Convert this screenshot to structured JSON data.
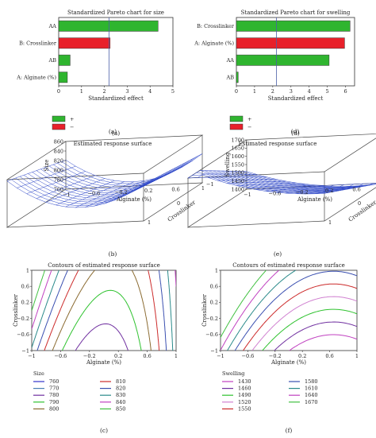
{
  "chart_data": [
    {
      "panel": "a",
      "type": "bar",
      "orientation": "horizontal",
      "title": "Standardized Pareto chart for size",
      "xlabel": "Standardized effect",
      "categories": [
        "AA",
        "B: Crosslinker",
        "AB",
        "A: Alginate (%)"
      ],
      "values": [
        4.35,
        2.25,
        0.5,
        0.38
      ],
      "signs": [
        "+",
        "-",
        "+",
        "+"
      ],
      "xticks": [
        "0",
        "1",
        "2",
        "3",
        "4",
        "5"
      ],
      "xlim": [
        0,
        5
      ],
      "reference_line": 2.2,
      "legend": [
        "+",
        "−"
      ],
      "caption": "(a)"
    },
    {
      "panel": "d",
      "type": "bar",
      "orientation": "horizontal",
      "title": "Standardized Pareto chart for swelling",
      "xlabel": "Standardized effect",
      "categories": [
        "B: Crosslinker",
        "A: Alginate (%)",
        "AA",
        "AB"
      ],
      "values": [
        6.25,
        5.95,
        5.1,
        0.1
      ],
      "signs": [
        "+",
        "-",
        "+",
        "+"
      ],
      "xticks": [
        "0",
        "1",
        "2",
        "3",
        "4",
        "5",
        "6"
      ],
      "xlim": [
        0,
        6.5
      ],
      "reference_line": 2.2,
      "legend": [
        "+",
        "−"
      ],
      "caption": "(d)"
    },
    {
      "panel": "b",
      "type": "surface",
      "title": "Estimated response surface",
      "zlabel": "Size",
      "xlabel": "Alginate (%)",
      "ylabel": "Crosslinker",
      "zticks": [
        "860",
        "840",
        "820",
        "800",
        "780",
        "760"
      ],
      "xticks": [
        "−1",
        "−0.6",
        "−0.2",
        "0.2",
        "0.6",
        "1"
      ],
      "yticks": [
        "1",
        "0",
        "−1"
      ],
      "caption": "(b)"
    },
    {
      "panel": "e",
      "type": "surface",
      "title": "Estimated response surface",
      "zlabel": "Swelling",
      "xlabel": "Alginate (%)",
      "ylabel": "Crosslinker",
      "zticks": [
        "1700",
        "1650",
        "1600",
        "1550",
        "1500",
        "1450",
        "1400"
      ],
      "xticks": [
        "−1",
        "−0.6",
        "−0.2",
        "0.2",
        "0.6",
        "1"
      ],
      "yticks": [
        "1",
        "0",
        "−1"
      ],
      "caption": "(e)"
    },
    {
      "panel": "c",
      "type": "contour",
      "title": "Contours of estimated response surface",
      "xlabel": "Alginate (%)",
      "ylabel": "Crosslinker",
      "xticks": [
        "−1",
        "−0.6",
        "−0.2",
        "0.2",
        "0.6",
        "1"
      ],
      "yticks": [
        "1",
        "0.6",
        "0.2",
        "−0.2",
        "−0.6",
        "−1"
      ],
      "xlim": [
        -1,
        1
      ],
      "ylim": [
        -1,
        1
      ],
      "legend_title": "Size",
      "levels": [
        {
          "label": "760",
          "color": "#3333cc"
        },
        {
          "label": "770",
          "color": "#4a7fb5"
        },
        {
          "label": "780",
          "color": "#7030a0"
        },
        {
          "label": "790",
          "color": "#2ec22e"
        },
        {
          "label": "800",
          "color": "#8a6a30"
        },
        {
          "label": "810",
          "color": "#cc2a2a"
        },
        {
          "label": "820",
          "color": "#3a4fb0"
        },
        {
          "label": "830",
          "color": "#2a8a8a"
        },
        {
          "label": "840",
          "color": "#c040c0"
        },
        {
          "label": "850",
          "color": "#40c040"
        }
      ],
      "caption": "(c)"
    },
    {
      "panel": "f",
      "type": "contour",
      "title": "Contours of estimated response surface",
      "xlabel": "Alginate (%)",
      "ylabel": "Crosslinker",
      "xticks": [
        "−1",
        "−0.6",
        "−0.2",
        "0.2",
        "0.6",
        "1"
      ],
      "yticks": [
        "1",
        "0.6",
        "0.2",
        "−0.2",
        "−0.6",
        "−1"
      ],
      "xlim": [
        -1,
        1
      ],
      "ylim": [
        -1,
        1
      ],
      "legend_title": "Swelling",
      "levels": [
        {
          "label": "1430",
          "color": "#c040c0"
        },
        {
          "label": "1460",
          "color": "#7030a0"
        },
        {
          "label": "1490",
          "color": "#2ec22e"
        },
        {
          "label": "1520",
          "color": "#d080d0"
        },
        {
          "label": "1550",
          "color": "#cc2a2a"
        },
        {
          "label": "1580",
          "color": "#3a4fb0"
        },
        {
          "label": "1610",
          "color": "#2a8a8a"
        },
        {
          "label": "1640",
          "color": "#c040c0"
        },
        {
          "label": "1670",
          "color": "#40c040"
        }
      ],
      "caption": "(f)"
    }
  ]
}
